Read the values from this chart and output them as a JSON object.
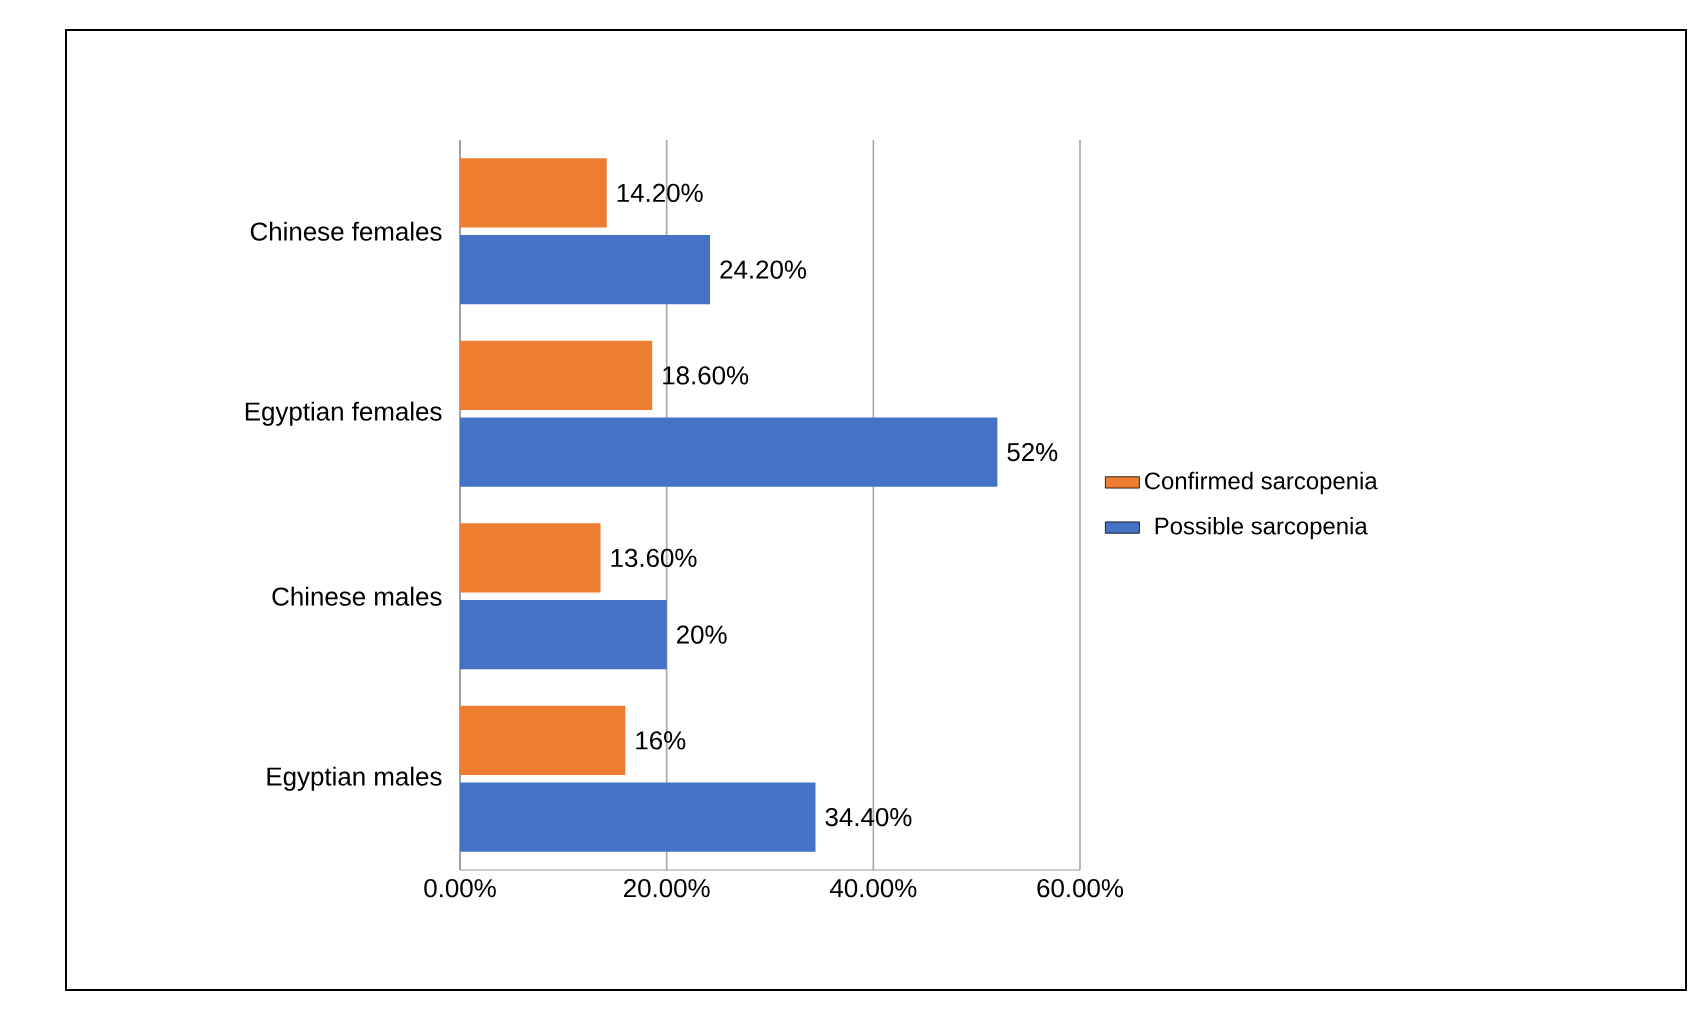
{
  "chart_data": {
    "type": "bar",
    "orientation": "horizontal",
    "categories": [
      "Chinese females",
      "Egyptian females",
      "Chinese males",
      "Egyptian males"
    ],
    "series": [
      {
        "name": "Confirmed sarcopenia",
        "color": "#ed7d31",
        "values": [
          14.2,
          18.6,
          13.6,
          16
        ],
        "value_labels": [
          "14.20%",
          "18.60%",
          "13.60%",
          "16%"
        ]
      },
      {
        "name": "Possible sarcopenia",
        "color": "#4472c4",
        "values": [
          24.2,
          52,
          20,
          34.4
        ],
        "value_labels": [
          "24.20%",
          "52%",
          "20%",
          "34.40%"
        ]
      }
    ],
    "xlim": [
      0,
      60
    ],
    "xticks": [
      {
        "value": 0,
        "label": "0.00%"
      },
      {
        "value": 20,
        "label": "20.00%"
      },
      {
        "value": 40,
        "label": "40.00%"
      },
      {
        "value": 60,
        "label": "60.00%"
      }
    ],
    "grid": "x",
    "legend": "right"
  }
}
